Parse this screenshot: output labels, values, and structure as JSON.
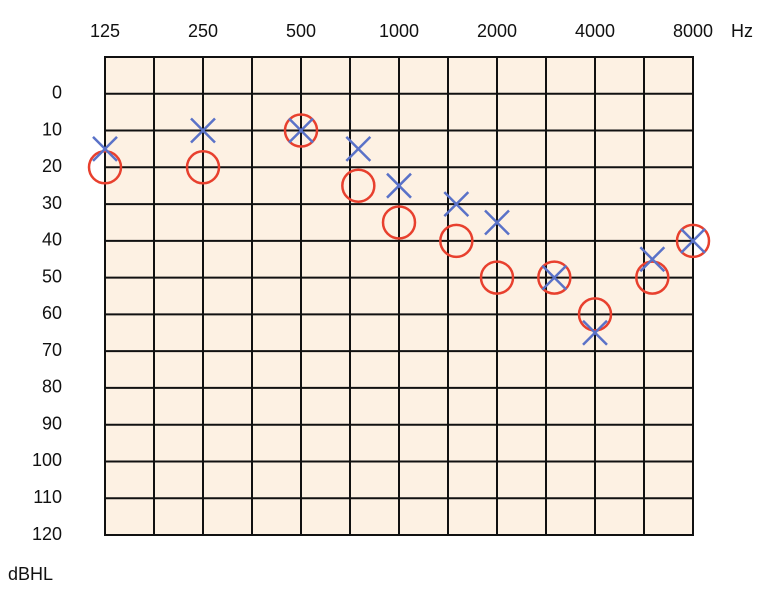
{
  "chart_data": {
    "type": "audiogram",
    "x_unit": "Hz",
    "y_unit": "dBHL",
    "x": [
      125,
      250,
      500,
      750,
      1000,
      1500,
      2000,
      3000,
      4000,
      6000,
      8000
    ],
    "xscale": "log",
    "xlim": [
      125,
      8000
    ],
    "xticks": [
      125,
      250,
      500,
      1000,
      2000,
      4000,
      8000
    ],
    "ylim": [
      -10,
      120
    ],
    "yticks": [
      0,
      10,
      20,
      30,
      40,
      50,
      60,
      70,
      80,
      90,
      100,
      110,
      120
    ],
    "y_inverted": true,
    "grid": true,
    "background": "#fdf1e3",
    "series": [
      {
        "marker": "circle",
        "color": "#e8402e",
        "values": [
          20,
          20,
          10,
          25,
          35,
          40,
          50,
          50,
          60,
          50,
          40
        ]
      },
      {
        "marker": "cross",
        "color": "#5a72c8",
        "values": [
          15,
          10,
          10,
          15,
          25,
          30,
          35,
          50,
          65,
          45,
          40
        ]
      }
    ]
  }
}
